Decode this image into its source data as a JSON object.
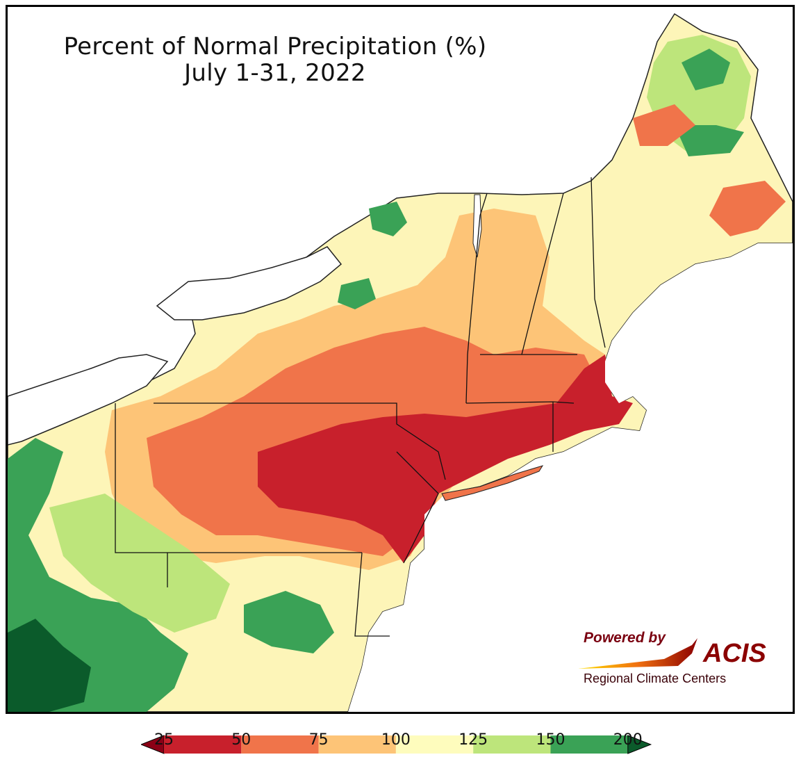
{
  "map": {
    "title_line1": "Percent of Normal Precipitation (%)",
    "title_line2": "July 1-31, 2022",
    "region": "Northeast United States"
  },
  "logo": {
    "powered_by": "Powered by",
    "brand": "ACIS",
    "subtitle": "Regional Climate Centers",
    "brand_color": "#8b0000"
  },
  "legend": {
    "ticks": [
      "25",
      "50",
      "75",
      "100",
      "125",
      "150",
      "200"
    ],
    "bins": [
      {
        "range": "<25",
        "color": "#8b0016"
      },
      {
        "range": "25-50",
        "color": "#c8202c"
      },
      {
        "range": "50-75",
        "color": "#f0744a"
      },
      {
        "range": "75-100",
        "color": "#fdc477"
      },
      {
        "range": "100-125",
        "color": "#fefcbd"
      },
      {
        "range": "125-150",
        "color": "#bde57b"
      },
      {
        "range": "150-200",
        "color": "#3aa256"
      },
      {
        "range": ">200",
        "color": "#0b5b2b"
      }
    ]
  }
}
